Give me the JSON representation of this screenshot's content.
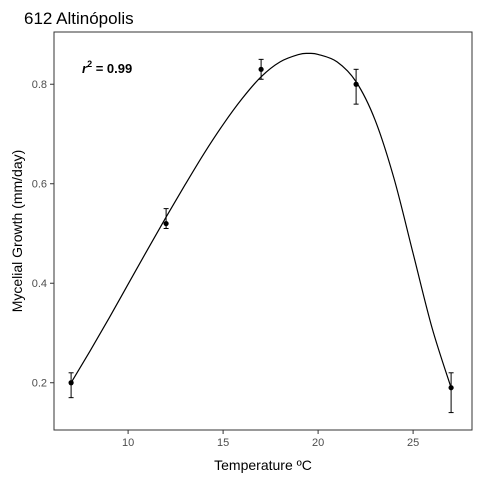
{
  "chart_data": {
    "type": "scatter",
    "title": "612 Altinópolis",
    "xlabel": "Temperature ºC",
    "ylabel": "Mycelial Growth (mm/day)",
    "xlim": [
      6.1,
      28.1
    ],
    "ylim": [
      0.105,
      0.905
    ],
    "xticks": [
      10,
      15,
      20,
      25
    ],
    "yticks": [
      0.2,
      0.4,
      0.6,
      0.8
    ],
    "xtick_labels": [
      "10",
      "15",
      "20",
      "25"
    ],
    "ytick_labels": [
      "0.2",
      "0.4",
      "0.6",
      "0.8"
    ],
    "grid": false,
    "points": [
      {
        "x": 7,
        "y": 0.2,
        "ylow": 0.17,
        "yhigh": 0.22
      },
      {
        "x": 12,
        "y": 0.52,
        "ylow": 0.51,
        "yhigh": 0.55
      },
      {
        "x": 17,
        "y": 0.83,
        "ylow": 0.81,
        "yhigh": 0.85
      },
      {
        "x": 22,
        "y": 0.8,
        "ylow": 0.76,
        "yhigh": 0.83
      },
      {
        "x": 27,
        "y": 0.19,
        "ylow": 0.14,
        "yhigh": 0.22
      }
    ],
    "fit_curve": [
      [
        7,
        0.2
      ],
      [
        8,
        0.264
      ],
      [
        9,
        0.33
      ],
      [
        10,
        0.398
      ],
      [
        11,
        0.466
      ],
      [
        12,
        0.533
      ],
      [
        13,
        0.598
      ],
      [
        14,
        0.661
      ],
      [
        15,
        0.719
      ],
      [
        16,
        0.771
      ],
      [
        17,
        0.815
      ],
      [
        18,
        0.845
      ],
      [
        19,
        0.86
      ],
      [
        19.5,
        0.862
      ],
      [
        20,
        0.86
      ],
      [
        21,
        0.845
      ],
      [
        22,
        0.805
      ],
      [
        23,
        0.728
      ],
      [
        24,
        0.61
      ],
      [
        25,
        0.46
      ],
      [
        26,
        0.31
      ],
      [
        27,
        0.19
      ]
    ],
    "annotation": {
      "r": "r",
      "sup": "2",
      "text": " = 0.99"
    }
  }
}
